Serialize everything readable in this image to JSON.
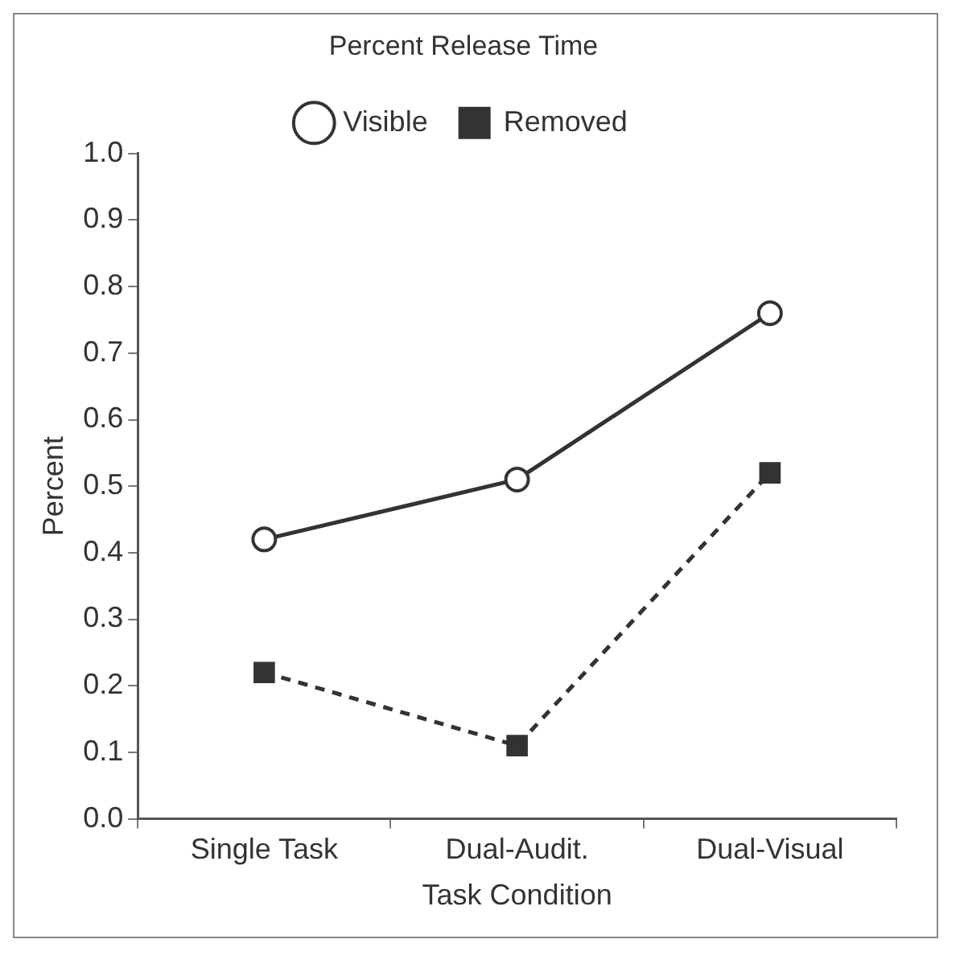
{
  "chart_data": {
    "type": "line",
    "title": "Percent Release Time",
    "xlabel": "Task Condition",
    "ylabel": "Percent",
    "categories": [
      "Single Task",
      "Dual-Audit.",
      "Dual-Visual"
    ],
    "series": [
      {
        "name": "Visible",
        "color": "#333333",
        "values": [
          0.42,
          0.51,
          0.76
        ],
        "marker": "circle",
        "line_style": "solid"
      },
      {
        "name": "Removed",
        "color": "#333333",
        "values": [
          0.22,
          0.11,
          0.52
        ],
        "marker": "square",
        "line_style": "dashed"
      }
    ],
    "ylim": [
      0,
      1
    ],
    "yticks": [
      {
        "value": 0,
        "label": "0.0"
      },
      0.1,
      0.2,
      0.3,
      0.4,
      0.5,
      0.6,
      0.7,
      0.8,
      0.9,
      {
        "value": 1,
        "label": "1.0"
      }
    ],
    "grid": false,
    "legend": "top"
  }
}
